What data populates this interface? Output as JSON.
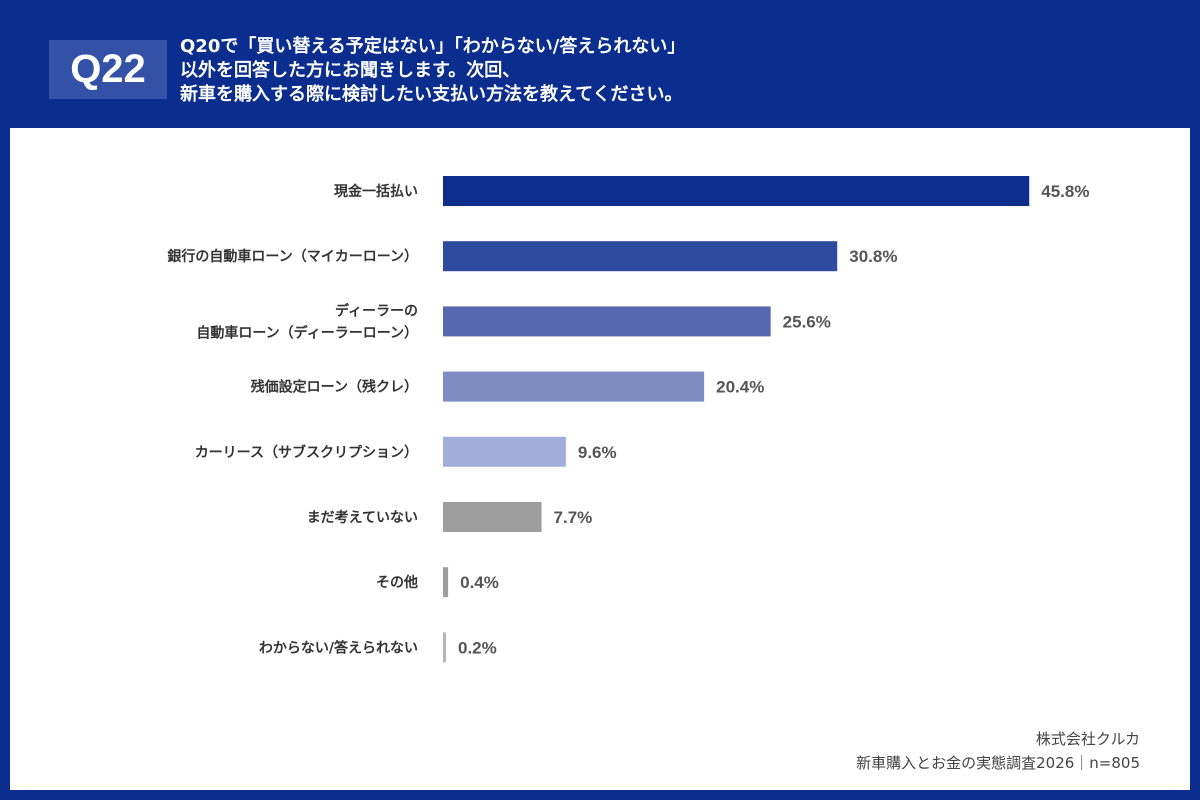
{
  "header": {
    "question_no": "Q22",
    "question_lines": [
      "Q20で「買い替える予定はない」「わからない/答えられない」",
      "以外を回答した方にお聞きします。次回、",
      "新車を購入する際に検討したい支払い方法を教えてください。"
    ]
  },
  "chart_data": {
    "type": "bar",
    "orientation": "horizontal",
    "unit": "%",
    "categories": [
      [
        "現金一括払い"
      ],
      [
        "銀行の自動車ローン（マイカーローン）"
      ],
      [
        "ディーラーの",
        "自動車ローン（ディーラーローン）"
      ],
      [
        "残価設定ローン（残クレ）"
      ],
      [
        "カーリース（サブスクリプション）"
      ],
      [
        "まだ考えていない"
      ],
      [
        "その他"
      ],
      [
        "わからない/答えられない"
      ]
    ],
    "values": [
      45.8,
      30.8,
      25.6,
      20.4,
      9.6,
      7.7,
      0.4,
      0.2
    ],
    "data_labels": [
      "45.8%",
      "30.8%",
      "25.6%",
      "20.4%",
      "9.6%",
      "7.7%",
      "0.4%",
      "0.2%"
    ],
    "colors": [
      "#0d2e8d",
      "#2f4b9f",
      "#5568b0",
      "#7e8cc3",
      "#a3addb",
      "#9e9e9e",
      "#9e9e9e",
      "#b5b5b5"
    ],
    "grid": false,
    "legend": "none"
  },
  "footer": {
    "company": "株式会社クルカ",
    "survey": "新車購入とお金の実態調査2026｜n=805"
  }
}
